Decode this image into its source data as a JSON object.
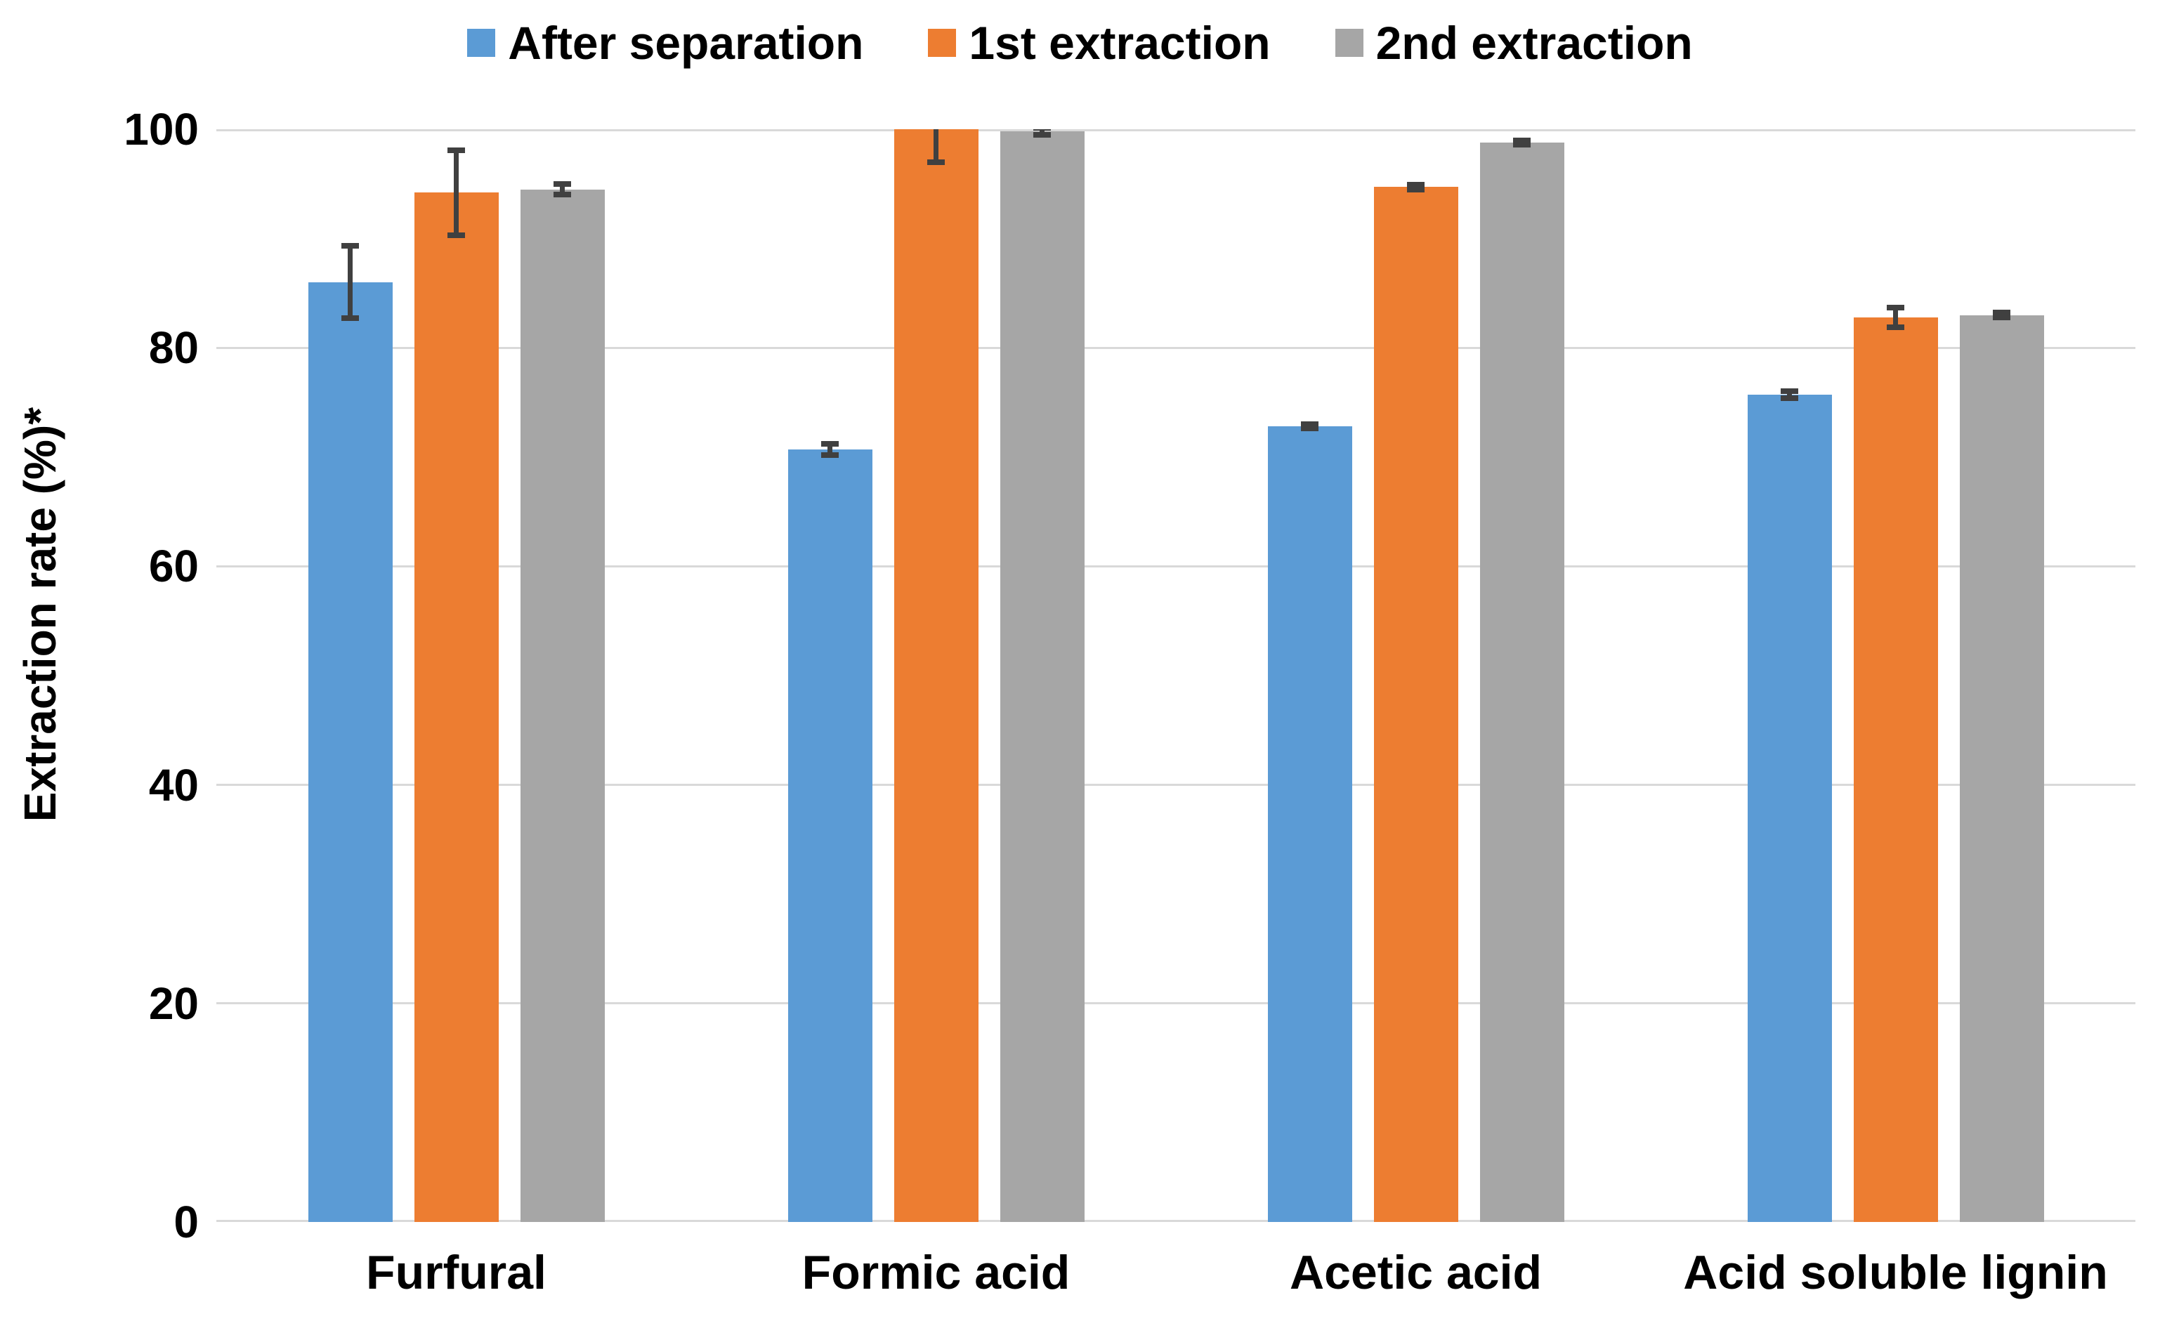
{
  "chart_data": {
    "type": "bar",
    "title": "",
    "categories": [
      "Furfural",
      "Formic acid",
      "Acetic acid",
      "Acid soluble lignin"
    ],
    "series": [
      {
        "name": "After separation",
        "color": "#5B9BD5",
        "values": [
          86.0,
          70.7,
          72.8,
          75.7
        ],
        "errors": [
          3.3,
          0.5,
          0.2,
          0.3
        ]
      },
      {
        "name": "1st extraction",
        "color": "#ED7D31",
        "values": [
          94.2,
          100.0,
          94.7,
          82.8
        ],
        "errors": [
          3.9,
          3.0,
          0.2,
          0.9
        ]
      },
      {
        "name": "2nd extraction",
        "color": "#A6A6A6",
        "values": [
          94.5,
          99.8,
          98.8,
          83.0
        ],
        "errors": [
          0.5,
          0.3,
          0.2,
          0.2
        ]
      }
    ],
    "xlabel": "",
    "ylabel": "Extraction rate (%)*",
    "ylim": [
      0,
      100
    ],
    "yticks": [
      0,
      20,
      40,
      60,
      80,
      100
    ],
    "ytick_labels": [
      "0",
      "20",
      "40",
      "60",
      "80",
      "100"
    ],
    "grid": true,
    "error_bars": true,
    "legend_position": "top",
    "colors": {
      "gridline": "#D9D9D9",
      "error_bar": "#404040",
      "text": "#000000",
      "background": "#FFFFFF"
    }
  }
}
